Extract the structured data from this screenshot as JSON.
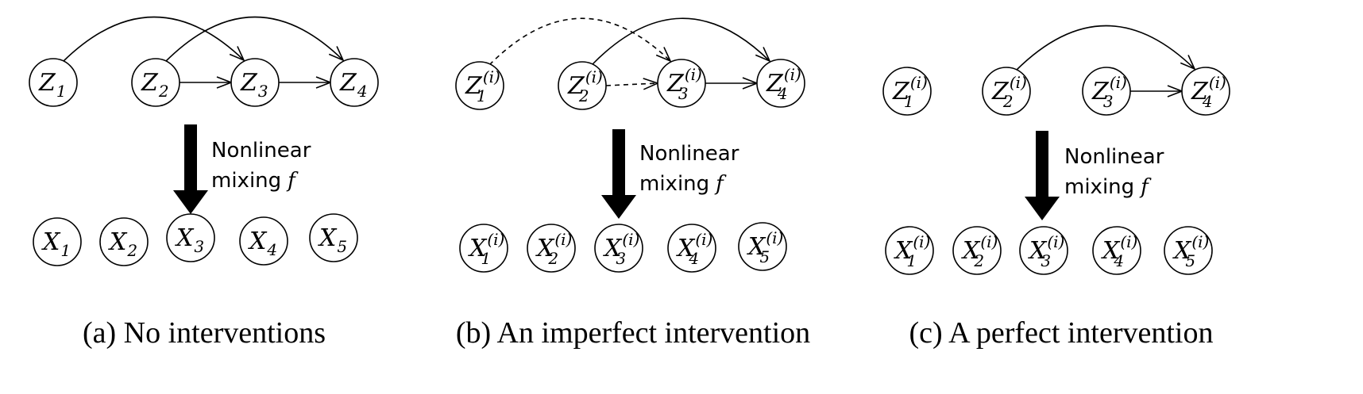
{
  "mixing_label": {
    "line1": "Nonlinear",
    "line2": "mixing",
    "symbol": "f"
  },
  "panels": [
    {
      "caption": "(a) No interventions",
      "superscript": "",
      "latent_nodes": [
        {
          "base": "Z",
          "sub": "1"
        },
        {
          "base": "Z",
          "sub": "2"
        },
        {
          "base": "Z",
          "sub": "3"
        },
        {
          "base": "Z",
          "sub": "4"
        }
      ],
      "observed_nodes": [
        {
          "base": "X",
          "sub": "1"
        },
        {
          "base": "X",
          "sub": "2"
        },
        {
          "base": "X",
          "sub": "3"
        },
        {
          "base": "X",
          "sub": "4"
        },
        {
          "base": "X",
          "sub": "5"
        }
      ],
      "edges": [
        {
          "from": "Z1",
          "to": "Z3",
          "style": "solid",
          "shape": "arc"
        },
        {
          "from": "Z2",
          "to": "Z4",
          "style": "solid",
          "shape": "arc"
        },
        {
          "from": "Z2",
          "to": "Z3",
          "style": "solid",
          "shape": "straight"
        },
        {
          "from": "Z3",
          "to": "Z4",
          "style": "solid",
          "shape": "straight"
        }
      ]
    },
    {
      "caption": "(b) An imperfect intervention",
      "superscript": "(i)",
      "latent_nodes": [
        {
          "base": "Z",
          "sub": "1"
        },
        {
          "base": "Z",
          "sub": "2"
        },
        {
          "base": "Z",
          "sub": "3"
        },
        {
          "base": "Z",
          "sub": "4"
        }
      ],
      "observed_nodes": [
        {
          "base": "X",
          "sub": "1"
        },
        {
          "base": "X",
          "sub": "2"
        },
        {
          "base": "X",
          "sub": "3"
        },
        {
          "base": "X",
          "sub": "4"
        },
        {
          "base": "X",
          "sub": "5"
        }
      ],
      "edges": [
        {
          "from": "Z1",
          "to": "Z3",
          "style": "dashed",
          "shape": "arc"
        },
        {
          "from": "Z2",
          "to": "Z4",
          "style": "solid",
          "shape": "arc"
        },
        {
          "from": "Z2",
          "to": "Z3",
          "style": "dashed",
          "shape": "straight"
        },
        {
          "from": "Z3",
          "to": "Z4",
          "style": "solid",
          "shape": "straight"
        }
      ]
    },
    {
      "caption": "(c) A perfect intervention",
      "superscript": "(i)",
      "latent_nodes": [
        {
          "base": "Z",
          "sub": "1"
        },
        {
          "base": "Z",
          "sub": "2"
        },
        {
          "base": "Z",
          "sub": "3"
        },
        {
          "base": "Z",
          "sub": "4"
        }
      ],
      "observed_nodes": [
        {
          "base": "X",
          "sub": "1"
        },
        {
          "base": "X",
          "sub": "2"
        },
        {
          "base": "X",
          "sub": "3"
        },
        {
          "base": "X",
          "sub": "4"
        },
        {
          "base": "X",
          "sub": "5"
        }
      ],
      "edges": [
        {
          "from": "Z2",
          "to": "Z4",
          "style": "solid",
          "shape": "arc"
        },
        {
          "from": "Z3",
          "to": "Z4",
          "style": "solid",
          "shape": "straight"
        }
      ]
    }
  ]
}
